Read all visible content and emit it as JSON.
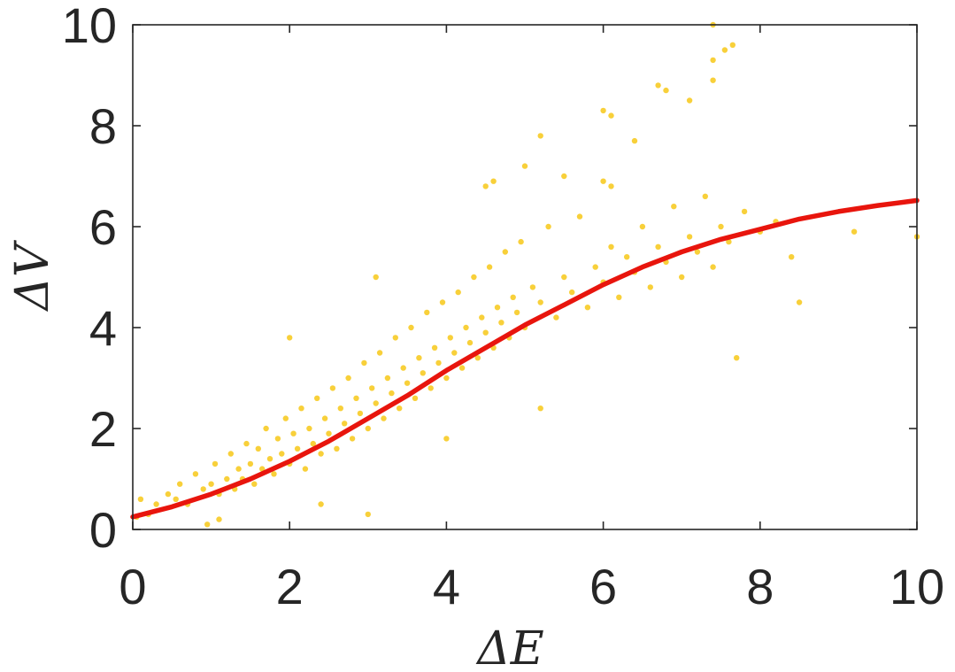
{
  "chart_data": {
    "type": "scatter",
    "title": "",
    "xlabel": "ΔE",
    "ylabel": "ΔV",
    "xlim": [
      0,
      10
    ],
    "ylim": [
      0,
      10
    ],
    "xticks": [
      "0",
      "2",
      "4",
      "6",
      "8",
      "10"
    ],
    "yticks": [
      "0",
      "2",
      "4",
      "6",
      "8",
      "10"
    ],
    "grid": false,
    "legend": "none",
    "colors": {
      "points": "#f8d03a",
      "fit": "#e8150d",
      "axes": "#262626"
    },
    "series": [
      {
        "kind": "points",
        "points": [
          [
            0.05,
            0.25
          ],
          [
            0.1,
            0.6
          ],
          [
            0.2,
            0.3
          ],
          [
            0.3,
            0.5
          ],
          [
            0.45,
            0.7
          ],
          [
            0.55,
            0.6
          ],
          [
            0.6,
            0.9
          ],
          [
            0.7,
            0.5
          ],
          [
            0.8,
            1.1
          ],
          [
            0.9,
            0.8
          ],
          [
            1.0,
            0.9
          ],
          [
            1.05,
            1.3
          ],
          [
            1.1,
            0.7
          ],
          [
            1.2,
            1.0
          ],
          [
            1.25,
            1.5
          ],
          [
            1.3,
            0.8
          ],
          [
            1.35,
            1.2
          ],
          [
            1.4,
            1.0
          ],
          [
            1.45,
            1.7
          ],
          [
            1.5,
            1.3
          ],
          [
            1.55,
            0.9
          ],
          [
            1.6,
            1.6
          ],
          [
            1.65,
            1.2
          ],
          [
            1.7,
            2.0
          ],
          [
            1.75,
            1.4
          ],
          [
            1.8,
            1.1
          ],
          [
            1.85,
            1.8
          ],
          [
            1.9,
            1.5
          ],
          [
            1.95,
            2.2
          ],
          [
            2.0,
            1.3
          ],
          [
            2.05,
            1.9
          ],
          [
            2.1,
            1.6
          ],
          [
            2.15,
            2.4
          ],
          [
            2.2,
            1.2
          ],
          [
            2.25,
            2.0
          ],
          [
            2.3,
            1.7
          ],
          [
            2.35,
            2.6
          ],
          [
            2.4,
            1.5
          ],
          [
            2.45,
            2.2
          ],
          [
            2.5,
            1.9
          ],
          [
            2.55,
            2.8
          ],
          [
            2.6,
            1.6
          ],
          [
            2.65,
            2.4
          ],
          [
            2.7,
            2.1
          ],
          [
            2.75,
            3.0
          ],
          [
            2.8,
            1.8
          ],
          [
            2.85,
            2.6
          ],
          [
            2.9,
            2.3
          ],
          [
            2.95,
            3.3
          ],
          [
            3.0,
            2.0
          ],
          [
            3.05,
            2.8
          ],
          [
            3.1,
            2.5
          ],
          [
            3.15,
            3.5
          ],
          [
            3.2,
            2.2
          ],
          [
            3.25,
            3.0
          ],
          [
            3.3,
            2.7
          ],
          [
            3.35,
            3.8
          ],
          [
            3.4,
            2.4
          ],
          [
            3.45,
            3.2
          ],
          [
            3.5,
            2.9
          ],
          [
            3.55,
            4.0
          ],
          [
            3.6,
            2.6
          ],
          [
            3.65,
            3.4
          ],
          [
            3.7,
            3.1
          ],
          [
            3.75,
            4.3
          ],
          [
            3.8,
            2.8
          ],
          [
            3.85,
            3.6
          ],
          [
            3.9,
            3.3
          ],
          [
            3.95,
            4.5
          ],
          [
            4.0,
            3.0
          ],
          [
            4.05,
            3.8
          ],
          [
            4.1,
            3.5
          ],
          [
            4.15,
            4.7
          ],
          [
            4.2,
            3.2
          ],
          [
            4.25,
            4.0
          ],
          [
            4.3,
            3.7
          ],
          [
            4.35,
            5.0
          ],
          [
            4.4,
            3.4
          ],
          [
            4.45,
            4.2
          ],
          [
            4.5,
            3.9
          ],
          [
            4.55,
            5.2
          ],
          [
            4.6,
            3.6
          ],
          [
            4.65,
            4.4
          ],
          [
            4.7,
            4.1
          ],
          [
            4.75,
            5.5
          ],
          [
            4.8,
            3.8
          ],
          [
            4.85,
            4.6
          ],
          [
            4.9,
            4.3
          ],
          [
            4.95,
            5.7
          ],
          [
            5.0,
            4.0
          ],
          [
            5.1,
            4.8
          ],
          [
            5.2,
            4.5
          ],
          [
            5.3,
            6.0
          ],
          [
            5.4,
            4.2
          ],
          [
            5.5,
            5.0
          ],
          [
            5.6,
            4.7
          ],
          [
            5.7,
            6.2
          ],
          [
            5.8,
            4.4
          ],
          [
            5.9,
            5.2
          ],
          [
            6.0,
            4.9
          ],
          [
            6.1,
            5.6
          ],
          [
            6.2,
            4.6
          ],
          [
            6.3,
            5.4
          ],
          [
            6.4,
            5.1
          ],
          [
            6.5,
            6.0
          ],
          [
            6.6,
            4.8
          ],
          [
            6.7,
            5.6
          ],
          [
            6.8,
            5.3
          ],
          [
            6.9,
            6.4
          ],
          [
            7.0,
            5.0
          ],
          [
            7.1,
            5.8
          ],
          [
            7.2,
            5.5
          ],
          [
            7.3,
            6.6
          ],
          [
            7.4,
            5.2
          ],
          [
            7.5,
            6.0
          ],
          [
            7.6,
            5.7
          ],
          [
            7.8,
            6.3
          ],
          [
            8.0,
            5.9
          ],
          [
            8.2,
            6.1
          ],
          [
            8.5,
            4.5
          ],
          [
            5.2,
            7.8
          ],
          [
            5.5,
            7.0
          ],
          [
            6.0,
            8.3
          ],
          [
            6.1,
            8.2
          ],
          [
            6.7,
            8.8
          ],
          [
            6.8,
            8.7
          ],
          [
            7.1,
            8.5
          ],
          [
            7.4,
            10.0
          ],
          [
            7.55,
            9.5
          ],
          [
            7.65,
            9.6
          ],
          [
            7.4,
            9.3
          ],
          [
            7.4,
            8.9
          ],
          [
            4.5,
            6.8
          ],
          [
            4.6,
            6.9
          ],
          [
            5.0,
            7.2
          ],
          [
            6.0,
            6.9
          ],
          [
            6.1,
            6.8
          ],
          [
            8.4,
            5.4
          ],
          [
            9.2,
            5.9
          ],
          [
            10.0,
            5.8
          ],
          [
            0.95,
            0.1
          ],
          [
            1.1,
            0.2
          ],
          [
            2.4,
            0.5
          ],
          [
            3.0,
            0.3
          ],
          [
            7.7,
            3.4
          ],
          [
            6.4,
            7.7
          ],
          [
            3.1,
            5.0
          ],
          [
            2.0,
            3.8
          ],
          [
            5.2,
            2.4
          ],
          [
            4.0,
            1.8
          ]
        ]
      },
      {
        "kind": "fit-curve",
        "x": [
          0,
          0.5,
          1,
          1.5,
          2,
          2.5,
          3,
          3.5,
          4,
          4.5,
          5,
          5.5,
          6,
          6.5,
          7,
          7.5,
          8,
          8.5,
          9,
          9.5,
          10
        ],
        "y": [
          0.25,
          0.45,
          0.7,
          1.0,
          1.35,
          1.75,
          2.2,
          2.65,
          3.15,
          3.6,
          4.05,
          4.45,
          4.85,
          5.2,
          5.5,
          5.75,
          5.95,
          6.15,
          6.3,
          6.42,
          6.52
        ]
      }
    ]
  }
}
